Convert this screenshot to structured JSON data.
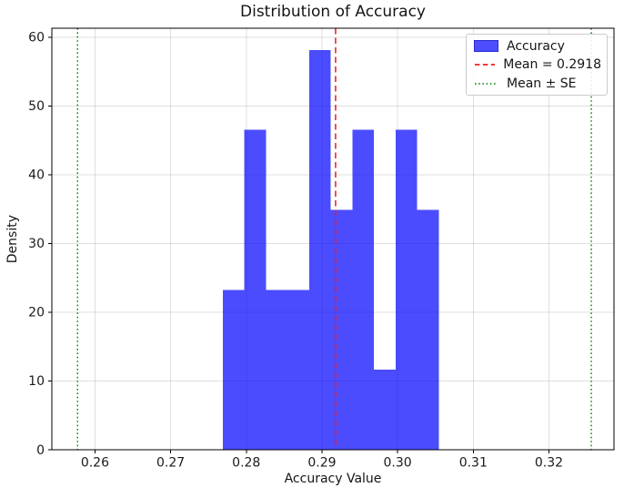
{
  "figure": {
    "title": "Distribution of Accuracy",
    "xlabel": "Accuracy Value",
    "ylabel": "Density"
  },
  "legend": {
    "position": "upper right",
    "items": [
      {
        "label": "Accuracy",
        "marker": "patch",
        "color": "#4d4dff",
        "edge_color": "#2a2acc"
      },
      {
        "label": "Mean = 0.2918",
        "marker": "dashed-line",
        "color": "#ef1c1c"
      },
      {
        "label": "Mean ± SE",
        "marker": "dotted-line",
        "color": "#008000"
      }
    ]
  },
  "chart_data": {
    "type": "bar",
    "subtype": "histogram",
    "title": "Distribution of Accuracy",
    "xlabel": "Accuracy Value",
    "ylabel": "Density",
    "bin_start": 0.2769,
    "bin_width": 0.002855,
    "bin_edges": [
      0.2769,
      0.27976,
      0.28261,
      0.28547,
      0.28832,
      0.29118,
      0.29403,
      0.29689,
      0.29974,
      0.3026,
      0.30545
    ],
    "densities": [
      23.26,
      46.51,
      23.26,
      23.26,
      58.14,
      34.88,
      46.51,
      11.63,
      46.51,
      34.88
    ],
    "bar_color": "#0000ff",
    "bar_opacity": 0.7,
    "mean_line": {
      "value": 0.2918,
      "style": "dashed",
      "color": "#ef1c1c",
      "label": "Mean = 0.2918"
    },
    "se_lines": {
      "lower": 0.2577,
      "upper": 0.3256,
      "style": "dotted",
      "color": "#008000",
      "label": "Mean ± SE"
    },
    "xlim": [
      0.2543,
      0.3286
    ],
    "ylim": [
      0,
      61.3
    ],
    "x_ticks": [
      0.26,
      0.27,
      0.28,
      0.29,
      0.3,
      0.31,
      0.32
    ],
    "x_tick_labels": [
      "0.26",
      "0.27",
      "0.28",
      "0.29",
      "0.30",
      "0.31",
      "0.32"
    ],
    "y_ticks": [
      0,
      10,
      20,
      30,
      40,
      50,
      60
    ],
    "y_tick_labels": [
      "0",
      "10",
      "20",
      "30",
      "40",
      "50",
      "60"
    ],
    "grid": true,
    "grid_color": "#b0b0b0",
    "grid_opacity": 0.4,
    "legend_position": "upper right"
  }
}
